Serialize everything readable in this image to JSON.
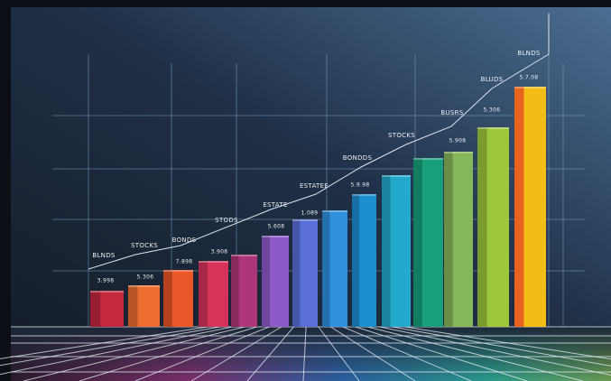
{
  "chart_data": {
    "type": "bar",
    "values": [
      40,
      46,
      63,
      73,
      80,
      101,
      119,
      129,
      147,
      168,
      187,
      194,
      221,
      266
    ],
    "colors": [
      "#c3283e",
      "#ec6d2f",
      "#e9572a",
      "#d6325a",
      "#ad3678",
      "#8d5ac9",
      "#5a6fd8",
      "#2f90de",
      "#1b8fd0",
      "#22a9cc",
      "#19a07b",
      "#86b75b",
      "#9dc83b",
      "#f3bd16"
    ],
    "ylim": [
      0,
      300
    ],
    "annotations": [
      "BLNDS",
      "BLUDS",
      "BUSRS",
      "STOCKS",
      "BONDDS",
      "ESTATEE",
      "ESTATE",
      "STODS",
      "BONDS",
      "STOCKS",
      "BLNDS"
    ],
    "bar_notes": [
      "3.998",
      "5.306",
      "7.898",
      "3.908",
      "5.608",
      "1.089",
      "5.9.98",
      "5.908",
      "5.306",
      "5.7.08"
    ]
  }
}
